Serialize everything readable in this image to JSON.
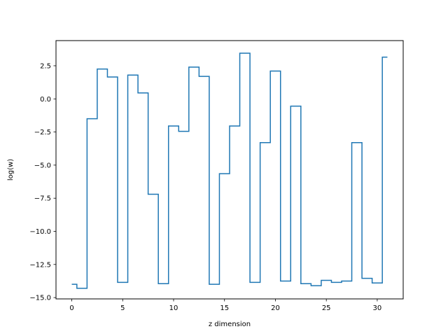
{
  "chart_data": {
    "type": "line",
    "drawstyle": "steps-mid",
    "title": "",
    "xlabel": "z dimension",
    "ylabel": "log(w)",
    "xlim": [
      -1.55,
      32.55
    ],
    "ylim": [
      -15.1,
      4.4
    ],
    "xticks": [
      0,
      5,
      10,
      15,
      20,
      25,
      30
    ],
    "xtick_labels": [
      "0",
      "5",
      "10",
      "15",
      "20",
      "25",
      "30"
    ],
    "yticks": [
      -15.0,
      -12.5,
      -10.0,
      -7.5,
      -5.0,
      -2.5,
      0.0,
      2.5
    ],
    "ytick_labels": [
      "−15.0",
      "−12.5",
      "−10.0",
      "−7.5",
      "−5.0",
      "−2.5",
      "0.0",
      "2.5"
    ],
    "grid": false,
    "legend": "none",
    "series": [
      {
        "color": "#1f77b4",
        "x": [
          0,
          1,
          2,
          3,
          4,
          5,
          6,
          7,
          8,
          9,
          10,
          11,
          12,
          13,
          14,
          15,
          16,
          17,
          18,
          19,
          20,
          21,
          22,
          23,
          24,
          25,
          26,
          27,
          28,
          29,
          30,
          31
        ],
        "y": [
          -14.0,
          -14.3,
          -1.5,
          2.25,
          1.65,
          -13.85,
          1.8,
          0.45,
          -7.2,
          -13.95,
          -2.05,
          -2.45,
          2.4,
          1.7,
          -14.0,
          -5.65,
          -2.05,
          3.45,
          -13.85,
          -3.3,
          2.1,
          -13.75,
          -0.55,
          -13.95,
          -14.1,
          -13.7,
          -13.85,
          -13.75,
          -3.3,
          -13.55,
          -13.9,
          3.15
        ]
      }
    ]
  }
}
